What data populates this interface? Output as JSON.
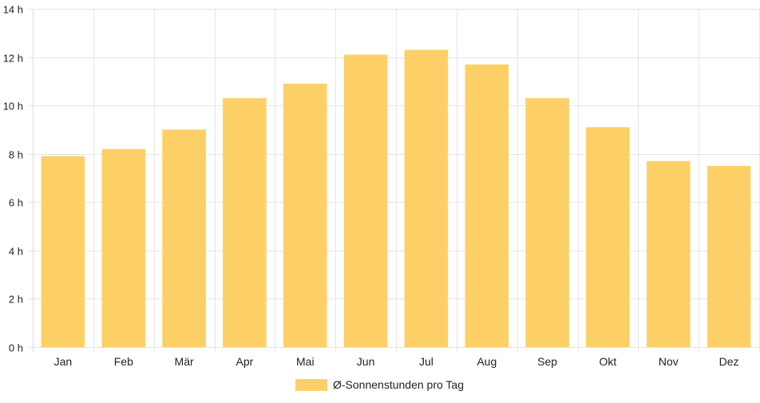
{
  "chart_data": {
    "type": "bar",
    "categories": [
      "Jan",
      "Feb",
      "Mär",
      "Apr",
      "Mai",
      "Jun",
      "Jul",
      "Aug",
      "Sep",
      "Okt",
      "Nov",
      "Dez"
    ],
    "series": [
      {
        "name": "Ø-Sonnenstunden pro Tag",
        "values": [
          7.9,
          8.2,
          9.0,
          10.3,
          10.9,
          12.1,
          12.3,
          11.7,
          10.3,
          9.1,
          7.7,
          7.5
        ]
      }
    ],
    "ylim": [
      0,
      14
    ],
    "yticks": [
      0,
      2,
      4,
      6,
      8,
      10,
      12,
      14
    ],
    "ytick_suffix": " h",
    "ytick_labels": [
      "0 h",
      "2 h",
      "4 h",
      "6 h",
      "8 h",
      "10 h",
      "12 h",
      "14 h"
    ],
    "grid": true,
    "legend_position": "bottom",
    "colors": {
      "bar": "#fdd067",
      "grid": "#e6e6e6",
      "text": "#222222"
    }
  },
  "legend": {
    "label": "Ø-Sonnenstunden pro Tag"
  }
}
